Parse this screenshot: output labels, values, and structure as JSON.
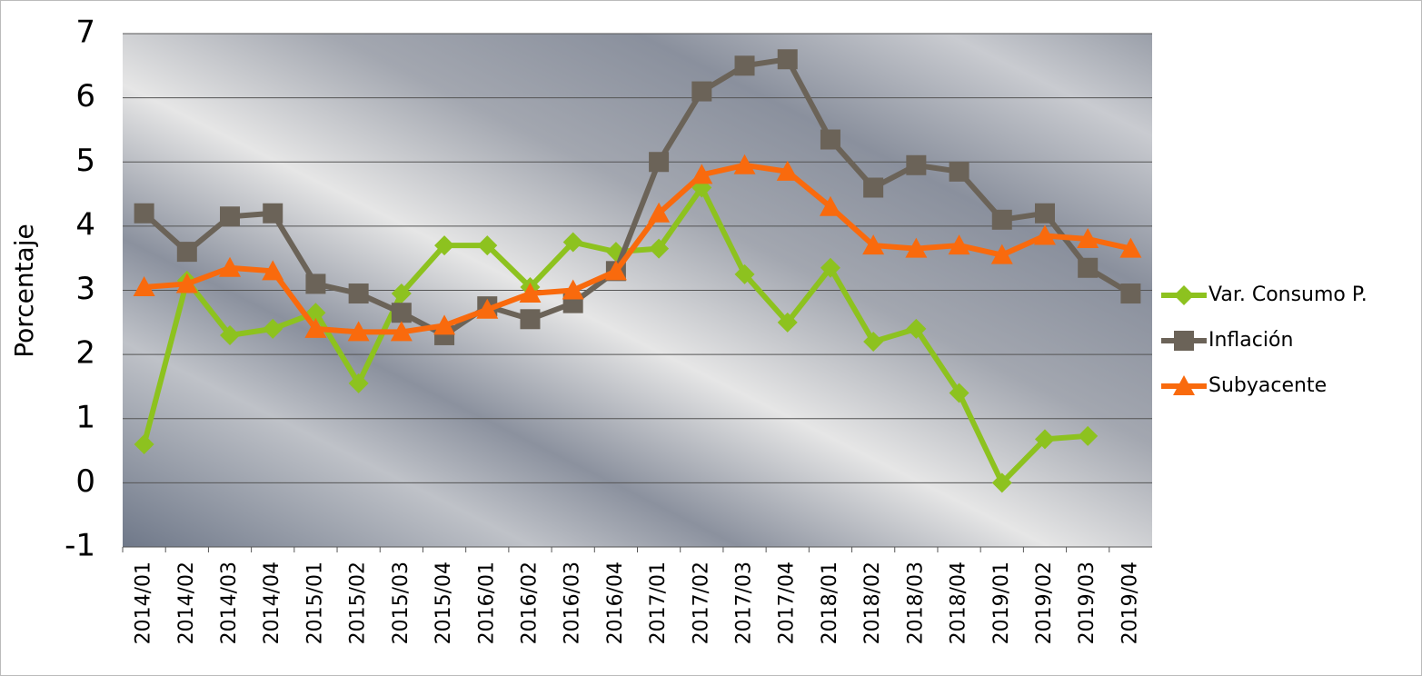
{
  "chart_data": {
    "type": "line",
    "y_label": "Porcentaje",
    "categories": [
      "2014/01",
      "2014/02",
      "2014/03",
      "2014/04",
      "2015/01",
      "2015/02",
      "2015/03",
      "2015/04",
      "2016/01",
      "2016/02",
      "2016/03",
      "2016/04",
      "2017/01",
      "2017/02",
      "2017/03",
      "2017/04",
      "2018/01",
      "2018/02",
      "2018/03",
      "2018/04",
      "2019/01",
      "2019/02",
      "2019/03",
      "2019/04"
    ],
    "series": [
      {
        "name": "Var. Consumo P.",
        "color": "#8dc21f",
        "marker": "diamond",
        "values": [
          0.6,
          3.15,
          2.3,
          2.4,
          2.65,
          1.55,
          2.95,
          3.7,
          3.7,
          3.05,
          3.75,
          3.6,
          3.65,
          4.6,
          3.25,
          2.5,
          3.35,
          2.2,
          2.4,
          1.4,
          0.0,
          0.68,
          0.73,
          null
        ]
      },
      {
        "name": "Inflación",
        "color": "#6b6358",
        "marker": "square",
        "values": [
          4.2,
          3.6,
          4.15,
          4.2,
          3.1,
          2.95,
          2.65,
          2.3,
          2.75,
          2.55,
          2.8,
          3.3,
          5.0,
          6.1,
          6.5,
          6.6,
          5.35,
          4.6,
          4.95,
          4.85,
          4.1,
          4.2,
          3.35,
          2.95
        ]
      },
      {
        "name": "Subyacente",
        "color": "#f96a0d",
        "marker": "triangle",
        "values": [
          3.05,
          3.1,
          3.35,
          3.3,
          2.4,
          2.35,
          2.35,
          2.45,
          2.7,
          2.95,
          3.0,
          3.3,
          4.2,
          4.8,
          4.95,
          4.85,
          4.3,
          3.7,
          3.65,
          3.7,
          3.55,
          3.85,
          3.8,
          3.65
        ]
      }
    ],
    "ylim": [
      -1,
      7
    ],
    "yticks": [
      -1,
      0,
      1,
      2,
      3,
      4,
      5,
      6,
      7
    ],
    "grid": true,
    "legend": "right"
  }
}
